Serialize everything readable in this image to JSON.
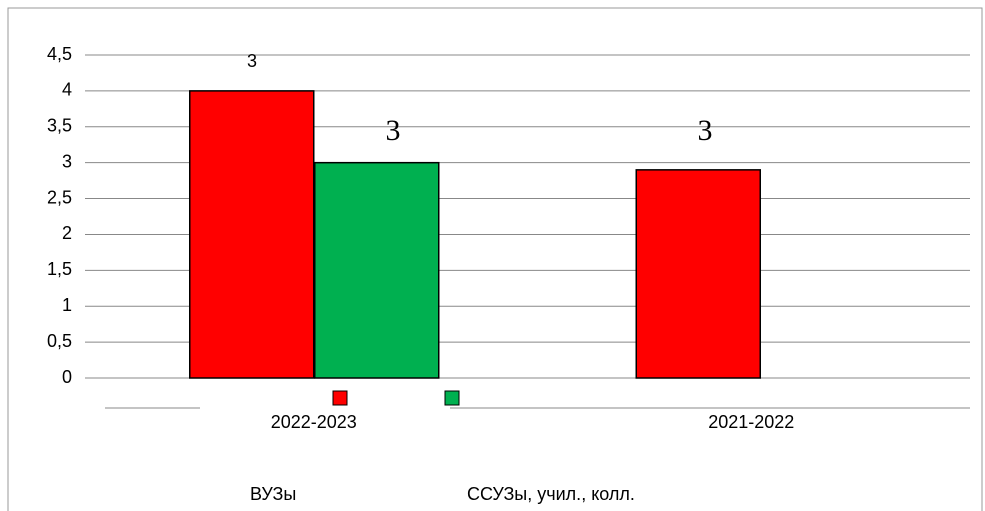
{
  "chart_data": {
    "type": "bar",
    "categories": [
      "2022-2023",
      "2021-2022"
    ],
    "series": [
      {
        "name": "ВУЗы",
        "color": "#ff0000",
        "values": [
          4,
          2.9
        ]
      },
      {
        "name": "ССУЗы, учил., колл.",
        "color": "#00b050",
        "values": [
          3,
          null
        ]
      }
    ],
    "annotations": [
      "3",
      "3",
      "3"
    ],
    "ylim": [
      0,
      4.5
    ],
    "yticks": [
      0,
      {
        "value": 0.5,
        "label": "0,5"
      },
      1,
      {
        "value": 1.5,
        "label": "1,5"
      },
      2,
      {
        "value": 2.5,
        "label": "2,5"
      },
      3,
      {
        "value": 3.5,
        "label": "3,5"
      },
      4,
      {
        "value": 4.5,
        "label": "4,5"
      }
    ],
    "grid": true
  }
}
